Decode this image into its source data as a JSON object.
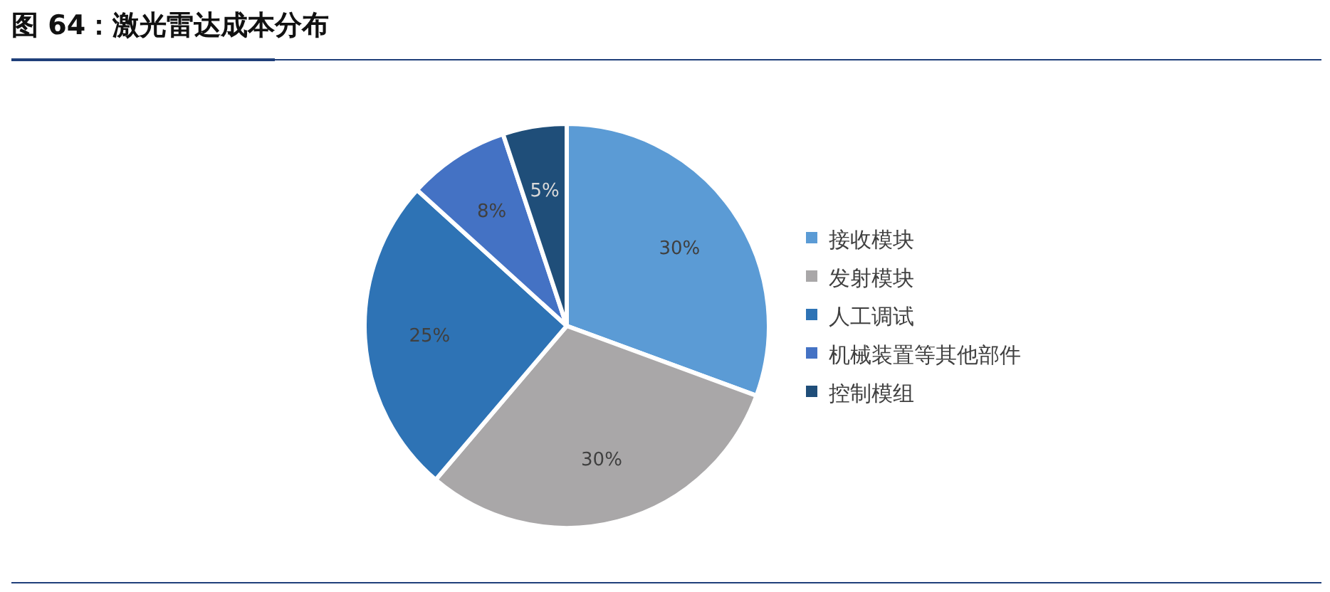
{
  "chart_data": {
    "type": "pie",
    "title": "图 64：激光雷达成本分布",
    "categories": [
      "接收模块",
      "发射模块",
      "人工调试",
      "机械装置等其他部件",
      "控制模组"
    ],
    "values": [
      30,
      30,
      25,
      8,
      5
    ],
    "colors": [
      "#5b9bd5",
      "#a9a7a8",
      "#2e73b5",
      "#4472c4",
      "#1f4e79"
    ],
    "value_labels": [
      "30%",
      "30%",
      "25%",
      "8%",
      "5%"
    ],
    "legend": "right"
  }
}
